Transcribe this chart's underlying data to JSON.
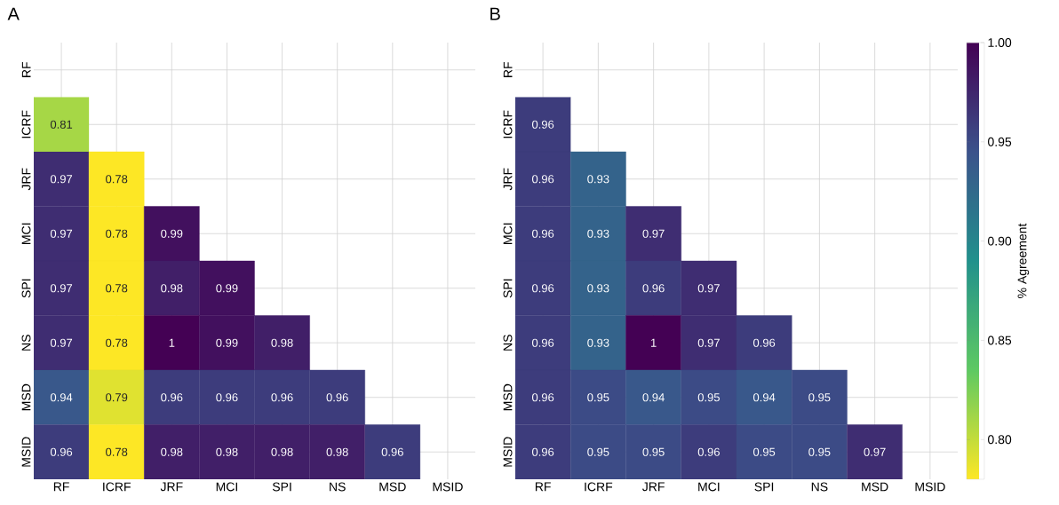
{
  "chart_data": [
    {
      "type": "heatmap",
      "title": "A",
      "grid": true,
      "data_labels": true,
      "categories": [
        "RF",
        "ICRF",
        "JRF",
        "MCI",
        "SPI",
        "NS",
        "MSD",
        "MSID"
      ],
      "y_categories": [
        "RF",
        "ICRF",
        "JRF",
        "MCI",
        "SPI",
        "NS",
        "MSD",
        "MSID"
      ],
      "cells": [
        [
          null,
          null,
          null,
          null,
          null,
          null,
          null,
          null
        ],
        [
          0.81,
          null,
          null,
          null,
          null,
          null,
          null,
          null
        ],
        [
          0.97,
          0.78,
          null,
          null,
          null,
          null,
          null,
          null
        ],
        [
          0.97,
          0.78,
          0.99,
          null,
          null,
          null,
          null,
          null
        ],
        [
          0.97,
          0.78,
          0.98,
          0.99,
          null,
          null,
          null,
          null
        ],
        [
          0.97,
          0.78,
          1,
          0.99,
          0.98,
          null,
          null,
          null
        ],
        [
          0.94,
          0.79,
          0.96,
          0.96,
          0.96,
          0.96,
          null,
          null
        ],
        [
          0.96,
          0.78,
          0.98,
          0.98,
          0.98,
          0.98,
          0.96,
          null
        ]
      ]
    },
    {
      "type": "heatmap",
      "title": "B",
      "grid": true,
      "data_labels": true,
      "clabel": "% Agreement",
      "clim": [
        0.78,
        1.0
      ],
      "cticks": [
        {
          "value": 0.8,
          "label": "0.80"
        },
        {
          "value": 0.85,
          "label": "0.85"
        },
        {
          "value": 0.9,
          "label": "0.90"
        },
        {
          "value": 0.95,
          "label": "0.95"
        },
        {
          "value": 1.0,
          "label": "1.00"
        }
      ],
      "categories": [
        "RF",
        "ICRF",
        "JRF",
        "MCI",
        "SPI",
        "NS",
        "MSD",
        "MSID"
      ],
      "y_categories": [
        "RF",
        "ICRF",
        "JRF",
        "MCI",
        "SPI",
        "NS",
        "MSD",
        "MSID"
      ],
      "cells": [
        [
          null,
          null,
          null,
          null,
          null,
          null,
          null,
          null
        ],
        [
          0.96,
          null,
          null,
          null,
          null,
          null,
          null,
          null
        ],
        [
          0.96,
          0.93,
          null,
          null,
          null,
          null,
          null,
          null
        ],
        [
          0.96,
          0.93,
          0.97,
          null,
          null,
          null,
          null,
          null
        ],
        [
          0.96,
          0.93,
          0.96,
          0.97,
          null,
          null,
          null,
          null
        ],
        [
          0.96,
          0.93,
          1,
          0.97,
          0.96,
          null,
          null,
          null
        ],
        [
          0.96,
          0.95,
          0.94,
          0.95,
          0.94,
          0.95,
          null,
          null
        ],
        [
          0.96,
          0.95,
          0.95,
          0.96,
          0.95,
          0.95,
          0.97,
          null
        ]
      ]
    }
  ]
}
